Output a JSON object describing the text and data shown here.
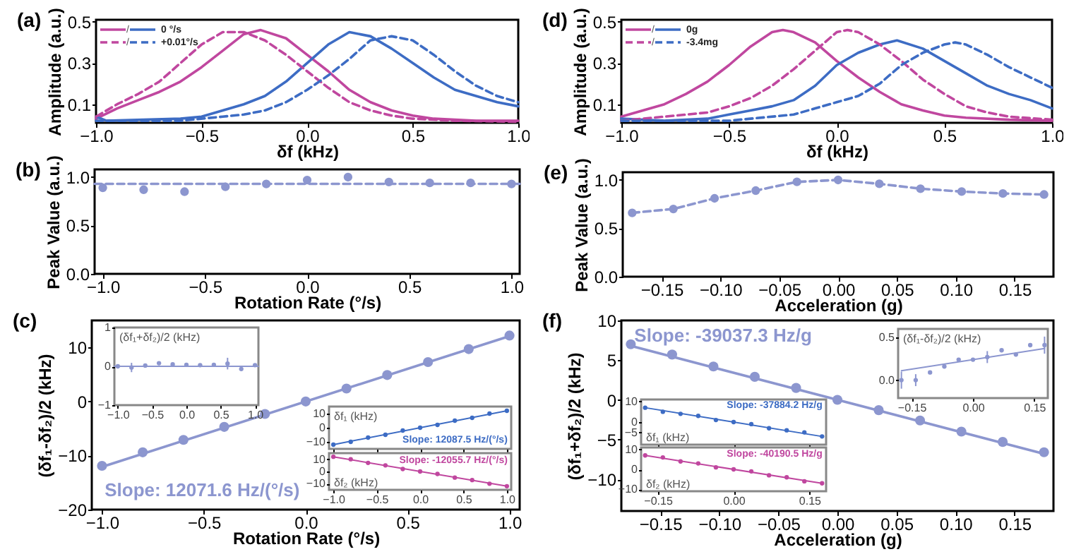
{
  "chart_data": [
    {
      "type": "line",
      "title": "(a)",
      "xlabel": "δf (kHz)",
      "ylabel": "Amplitude (a.u.)",
      "xlim": [
        -1,
        1
      ],
      "ylim": [
        0.01,
        0.51
      ],
      "xticks": [
        {
          "value": -1,
          "label": "−1.0"
        },
        {
          "value": -0.5,
          "label": "−0.5"
        },
        {
          "value": 0,
          "label": "0.0"
        },
        0.5,
        {
          "value": 1,
          "label": "1.0"
        }
      ],
      "yticks": [
        0.1,
        0.3,
        0.5
      ],
      "legend": "top left",
      "annotations": [
        "/",
        "/"
      ],
      "series": [
        {
          "color": "#c0479f",
          "line_style": "solid",
          "x": [
            -1,
            -0.9,
            -0.8,
            -0.7,
            -0.6,
            -0.5,
            -0.4,
            -0.3,
            -0.22,
            -0.1,
            0,
            0.1,
            0.2,
            0.3,
            0.4,
            0.5,
            0.6,
            0.8,
            1
          ],
          "values": [
            0.03,
            0.08,
            0.12,
            0.16,
            0.21,
            0.28,
            0.36,
            0.44,
            0.46,
            0.42,
            0.34,
            0.26,
            0.17,
            0.11,
            0.07,
            0.045,
            0.03,
            0.02,
            0.02
          ]
        },
        {
          "name": "0 °/s",
          "color": "#3d6cc4",
          "line_style": "solid",
          "x": [
            -1,
            -0.95,
            -0.6,
            -0.5,
            -0.4,
            -0.3,
            -0.2,
            -0.1,
            0,
            0.1,
            0.2,
            0.3,
            0.4,
            0.5,
            0.6,
            0.7,
            0.8,
            0.9,
            1
          ],
          "values": [
            0.04,
            0.02,
            0.03,
            0.04,
            0.07,
            0.1,
            0.14,
            0.21,
            0.3,
            0.39,
            0.45,
            0.43,
            0.37,
            0.3,
            0.23,
            0.17,
            0.14,
            0.11,
            0.09
          ]
        },
        {
          "color": "#c0479f",
          "line_style": "dashed",
          "x": [
            -1,
            -0.9,
            -0.8,
            -0.7,
            -0.6,
            -0.5,
            -0.4,
            -0.3,
            -0.2,
            -0.1,
            0,
            0.1,
            0.2,
            0.3,
            0.4,
            0.5,
            0.7,
            1
          ],
          "values": [
            0.04,
            0.1,
            0.15,
            0.21,
            0.3,
            0.39,
            0.45,
            0.45,
            0.41,
            0.34,
            0.26,
            0.18,
            0.11,
            0.07,
            0.045,
            0.03,
            0.02,
            0.015
          ]
        },
        {
          "name": "+0.01°/s",
          "color": "#3d6cc4",
          "line_style": "dashed",
          "x": [
            -1,
            -0.6,
            -0.4,
            -0.3,
            -0.2,
            -0.1,
            0,
            0.1,
            0.2,
            0.3,
            0.4,
            0.5,
            0.6,
            0.7,
            0.8,
            0.9,
            1
          ],
          "values": [
            0.02,
            0.02,
            0.04,
            0.05,
            0.07,
            0.11,
            0.17,
            0.24,
            0.32,
            0.41,
            0.43,
            0.41,
            0.34,
            0.26,
            0.19,
            0.14,
            0.11
          ]
        }
      ]
    },
    {
      "type": "scatter",
      "title": "(b)",
      "xlabel": "Rotation Rate (°/s)",
      "ylabel": "Peak Value (a.u.)",
      "x": [
        -1,
        -0.8,
        -0.6,
        -0.4,
        -0.2,
        0,
        0.2,
        0.4,
        0.6,
        0.8,
        1
      ],
      "xlim": [
        -1.04,
        1.04
      ],
      "ylim": [
        0,
        1.08
      ],
      "xticks": [
        {
          "value": -1,
          "label": "−1.0"
        },
        {
          "value": -0.5,
          "label": "−0.5"
        },
        {
          "value": 0,
          "label": "0.0"
        },
        0.5,
        {
          "value": 1,
          "label": "1.0"
        }
      ],
      "yticks": [
        {
          "value": 0,
          "label": "0.0"
        },
        0.5,
        {
          "value": 1,
          "label": "1.0"
        }
      ],
      "series": [
        {
          "color": "#8c96cf",
          "values": [
            0.89,
            0.87,
            0.85,
            0.9,
            0.93,
            0.97,
            1.0,
            0.95,
            0.94,
            0.94,
            0.93
          ]
        },
        {
          "type": "line",
          "line_style": "dashed",
          "color": "#8c96cf",
          "x": [
            -1.04,
            1.04
          ],
          "values": [
            0.93,
            0.93
          ]
        }
      ]
    },
    {
      "type": "scatter",
      "title": "(c)",
      "xlabel": "Rotation Rate (°/s)",
      "ylabel": "(δf₁-δf₂)/2 (kHz)",
      "x": [
        -1,
        -0.8,
        -0.6,
        -0.4,
        -0.2,
        0,
        0.2,
        0.4,
        0.6,
        0.8,
        1
      ],
      "xlim": [
        -1.05,
        1.05
      ],
      "ylim": [
        -20,
        15
      ],
      "xticks": [
        {
          "value": -1,
          "label": "−1.0"
        },
        {
          "value": -0.5,
          "label": "−0.5"
        },
        {
          "value": 0,
          "label": "0.0"
        },
        0.5,
        {
          "value": 1,
          "label": "1.0"
        }
      ],
      "yticks": [
        {
          "value": -20,
          "label": "−20"
        },
        {
          "value": -10,
          "label": "−10"
        },
        0,
        10
      ],
      "annotations": [
        "Slope: 12071.6 Hz/(°/s)"
      ],
      "series": [
        {
          "color": "#8c96cf",
          "values": [
            -11.9,
            -9.4,
            -7.1,
            -4.7,
            -2.3,
            0,
            2.4,
            4.9,
            7.3,
            9.7,
            12.2
          ]
        },
        {
          "type": "line",
          "color": "#8c96cf",
          "x": [
            -1,
            1
          ],
          "values": [
            -12.1,
            12.1
          ]
        }
      ]
    },
    {
      "type": "scatter",
      "ylabel": "(δf₁+δf₂)/2 (kHz)",
      "x": [
        -1,
        -0.8,
        -0.6,
        -0.4,
        -0.2,
        0,
        0.2,
        0.4,
        0.6,
        0.8,
        1
      ],
      "xlim": [
        -1.05,
        1.05
      ],
      "ylim": [
        -1,
        1
      ],
      "xticks": [
        {
          "value": -1,
          "label": "−1.0"
        },
        {
          "value": -0.5,
          "label": "−0.5"
        },
        {
          "value": 0,
          "label": "0.0"
        },
        0.5,
        {
          "value": 1,
          "label": "1.0"
        }
      ],
      "yticks": [
        {
          "value": -1,
          "label": "−1"
        },
        0,
        1
      ],
      "series": [
        {
          "color": "#8c96cf",
          "values": [
            0,
            -0.03,
            0.02,
            0.08,
            0.05,
            0.04,
            0.03,
            0.04,
            0.07,
            -0.07,
            0.03
          ],
          "errors": [
            null,
            0.12,
            null,
            null,
            null,
            null,
            null,
            null,
            0.15,
            null,
            null
          ]
        },
        {
          "type": "line",
          "color": "#8c96cf",
          "x": [
            -1.05,
            1.05
          ],
          "values": [
            0,
            0
          ]
        }
      ]
    },
    {
      "type": "scatter",
      "ylabel": "δf₁ (kHz)",
      "x": [
        -1,
        -0.8,
        -0.6,
        -0.4,
        -0.2,
        0,
        0.2,
        0.4,
        0.6,
        0.8,
        1
      ],
      "xlim": [
        -1.05,
        1.05
      ],
      "ylim": [
        -15,
        15
      ],
      "tick_labels": "y",
      "xticks": [
        {
          "value": -1,
          "label": null
        },
        {
          "value": -0.5,
          "label": null
        },
        {
          "value": 0,
          "label": null
        },
        {
          "value": 0.5,
          "label": null
        },
        {
          "value": 1,
          "label": null
        }
      ],
      "yticks": [
        {
          "value": -10,
          "label": "−10"
        },
        0,
        10
      ],
      "annotations": [
        "Slope: 12087.5 Hz/(°/s)"
      ],
      "series": [
        {
          "color": "#3d6cc4",
          "values": [
            -12,
            -10,
            -7,
            -5,
            -2,
            0,
            2,
            5,
            7,
            10,
            12
          ]
        },
        {
          "type": "line",
          "color": "#3d6cc4",
          "x": [
            -1,
            1
          ],
          "values": [
            -12,
            12
          ]
        }
      ]
    },
    {
      "type": "scatter",
      "ylabel": "δf₂ (kHz)",
      "x": [
        -1,
        -0.8,
        -0.6,
        -0.4,
        -0.2,
        0,
        0.2,
        0.4,
        0.6,
        0.8,
        1
      ],
      "xlim": [
        -1.05,
        1.05
      ],
      "ylim": [
        -15,
        15
      ],
      "xticks": [
        {
          "value": -1,
          "label": "−1.0"
        },
        {
          "value": -0.5,
          "label": "−0.5"
        },
        {
          "value": 0,
          "label": "0.0"
        },
        0.5,
        {
          "value": 1,
          "label": "1.0"
        }
      ],
      "yticks": [
        {
          "value": -10,
          "label": "−10"
        },
        0,
        10
      ],
      "annotations": [
        "Slope: -12055.7 Hz/(°/s)"
      ],
      "series": [
        {
          "color": "#c0479f",
          "values": [
            12,
            10,
            7,
            5,
            2,
            0,
            -2,
            -5,
            -7,
            -10,
            -12
          ]
        },
        {
          "type": "line",
          "color": "#c0479f",
          "x": [
            -1,
            1
          ],
          "values": [
            12,
            -12
          ]
        }
      ]
    },
    {
      "type": "line",
      "title": "(d)",
      "xlabel": "δf (kHz)",
      "ylabel": "Amplitude (a.u.)",
      "xlim": [
        -1,
        1
      ],
      "ylim": [
        0.01,
        0.51
      ],
      "xticks": [
        {
          "value": -1,
          "label": "−1.0"
        },
        {
          "value": -0.5,
          "label": "−0.5"
        },
        {
          "value": 0,
          "label": "0.0"
        },
        0.5,
        {
          "value": 1,
          "label": "1.0"
        }
      ],
      "yticks": [
        0.1,
        0.3,
        0.5
      ],
      "legend": "top left",
      "annotations": [
        "/",
        "/"
      ],
      "series": [
        {
          "color": "#c0479f",
          "line_style": "solid",
          "x": [
            -1,
            -0.9,
            -0.8,
            -0.7,
            -0.6,
            -0.5,
            -0.4,
            -0.3,
            -0.25,
            -0.2,
            -0.1,
            0,
            0.1,
            0.2,
            0.3,
            0.4,
            0.5,
            0.6,
            0.8,
            1
          ],
          "values": [
            0.04,
            0.07,
            0.1,
            0.15,
            0.21,
            0.29,
            0.38,
            0.45,
            0.46,
            0.45,
            0.4,
            0.31,
            0.23,
            0.16,
            0.1,
            0.07,
            0.045,
            0.035,
            0.025,
            0.02
          ]
        },
        {
          "name": "0g",
          "color": "#3d6cc4",
          "line_style": "solid",
          "x": [
            -1,
            -0.8,
            -0.6,
            -0.5,
            -0.4,
            -0.3,
            -0.2,
            -0.1,
            0,
            0.1,
            0.2,
            0.28,
            0.4,
            0.5,
            0.6,
            0.7,
            0.8,
            0.9,
            1
          ],
          "values": [
            0.03,
            0.02,
            0.03,
            0.05,
            0.07,
            0.09,
            0.12,
            0.19,
            0.29,
            0.35,
            0.39,
            0.41,
            0.37,
            0.31,
            0.25,
            0.19,
            0.15,
            0.12,
            0.08
          ]
        },
        {
          "color": "#c0479f",
          "line_style": "dashed",
          "x": [
            -1,
            -0.8,
            -0.6,
            -0.5,
            -0.4,
            -0.3,
            -0.2,
            -0.1,
            0,
            0.05,
            0.1,
            0.2,
            0.3,
            0.4,
            0.5,
            0.6,
            0.7,
            0.8,
            1
          ],
          "values": [
            0.02,
            0.04,
            0.06,
            0.09,
            0.13,
            0.19,
            0.27,
            0.36,
            0.45,
            0.46,
            0.45,
            0.39,
            0.31,
            0.22,
            0.15,
            0.09,
            0.06,
            0.04,
            0.025
          ]
        },
        {
          "name": "-3.4mg",
          "color": "#3d6cc4",
          "line_style": "dashed",
          "x": [
            -1,
            -0.5,
            -0.4,
            -0.2,
            -0.1,
            0,
            0.1,
            0.2,
            0.3,
            0.4,
            0.5,
            0.55,
            0.6,
            0.7,
            0.8,
            0.9,
            1
          ],
          "values": [
            0.02,
            0.02,
            0.03,
            0.05,
            0.08,
            0.11,
            0.14,
            0.2,
            0.29,
            0.35,
            0.39,
            0.4,
            0.39,
            0.34,
            0.28,
            0.23,
            0.18
          ]
        }
      ]
    },
    {
      "type": "line",
      "title": "(e)",
      "xlabel": "Acceleration (g)",
      "ylabel": "Peak Value (a.u.)",
      "marker": "circle",
      "line_style": "dashed",
      "x": [
        -0.175,
        -0.14,
        -0.105,
        -0.07,
        -0.035,
        0,
        0.035,
        0.07,
        0.105,
        0.14,
        0.175
      ],
      "xlim": [
        -0.183,
        0.183
      ],
      "ylim": [
        0,
        1.08
      ],
      "xticks": [
        {
          "value": -0.15,
          "label": "−0.15"
        },
        {
          "value": -0.1,
          "label": "−0.10"
        },
        {
          "value": -0.05,
          "label": "−0.05"
        },
        {
          "value": 0,
          "label": "0.00"
        },
        0.05,
        {
          "value": 0.1,
          "label": "0.10"
        },
        0.15
      ],
      "yticks": [
        {
          "value": 0,
          "label": "0.0"
        },
        0.5,
        {
          "value": 1,
          "label": "1.0"
        }
      ],
      "series": [
        {
          "color": "#8c96cf",
          "values": [
            0.66,
            0.7,
            0.81,
            0.89,
            0.98,
            1.0,
            0.96,
            0.91,
            0.88,
            0.86,
            0.85
          ]
        }
      ]
    },
    {
      "type": "scatter",
      "title": "(f)",
      "xlabel": "Acceleration (g)",
      "ylabel": "(δf₁+δf₂)/2 (kHz)",
      "x": [
        -0.175,
        -0.14,
        -0.105,
        -0.07,
        -0.035,
        0,
        0.035,
        0.07,
        0.105,
        0.14,
        0.175
      ],
      "xlim": [
        -0.183,
        0.183
      ],
      "ylim": [
        -14,
        10
      ],
      "xticks": [
        {
          "value": -0.15,
          "label": "−0.15"
        },
        {
          "value": -0.1,
          "label": "−0.10"
        },
        {
          "value": -0.05,
          "label": "−0.05"
        },
        {
          "value": 0,
          "label": "0.00"
        },
        0.05,
        {
          "value": 0.1,
          "label": "0.10"
        },
        0.15
      ],
      "yticks": [
        {
          "value": -10,
          "label": "−10"
        },
        {
          "value": -5,
          "label": "−5"
        },
        0,
        5,
        10
      ],
      "annotations": [
        "Slope: -39037.3 Hz/g"
      ],
      "series": [
        {
          "color": "#8c96cf",
          "values": [
            7.0,
            5.7,
            4.2,
            2.9,
            1.5,
            0,
            -1.3,
            -2.6,
            -4.0,
            -5.3,
            -6.6
          ]
        },
        {
          "type": "line",
          "color": "#8c96cf",
          "x": [
            -0.175,
            0.175
          ],
          "values": [
            6.8,
            -6.8
          ]
        }
      ]
    },
    {
      "type": "scatter",
      "ylabel": "(δf₁-δf₂)/2 (kHz)",
      "x": [
        -0.175,
        -0.14,
        -0.105,
        -0.07,
        -0.035,
        0,
        0.035,
        0.07,
        0.105,
        0.14,
        0.175
      ],
      "xlim": [
        -0.183,
        0.183
      ],
      "ylim": [
        -0.21,
        0.6
      ],
      "xticks": [
        {
          "value": -0.15,
          "label": "−0.15"
        },
        {
          "value": 0,
          "label": "0.00"
        },
        0.15
      ],
      "yticks": [
        {
          "value": 0,
          "label": "0.0"
        },
        0.5
      ],
      "series": [
        {
          "color": "#8c96cf",
          "values": [
            0,
            0,
            0.09,
            0.16,
            0.24,
            0.24,
            0.27,
            0.35,
            0.3,
            0.41,
            0.41
          ],
          "errors": [
            0.1,
            0.07,
            null,
            null,
            null,
            null,
            0.07,
            null,
            null,
            null,
            0.1
          ]
        },
        {
          "type": "line",
          "color": "#8c96cf",
          "x": [
            -0.175,
            0.175
          ],
          "values": [
            0.11,
            0.37
          ]
        }
      ]
    },
    {
      "type": "scatter",
      "ylabel": "δf₁ (kHz)",
      "x": [
        -0.175,
        -0.14,
        -0.105,
        -0.07,
        -0.035,
        0,
        0.035,
        0.07,
        0.105,
        0.14,
        0.175
      ],
      "xlim": [
        -0.183,
        0.183
      ],
      "ylim": [
        -11,
        11
      ],
      "tick_labels": "y",
      "xticks": [
        {
          "value": -0.15,
          "label": null
        },
        {
          "value": 0,
          "label": null
        },
        {
          "value": 0.15,
          "label": null
        }
      ],
      "yticks": [
        {
          "value": -5,
          "label": "−5"
        },
        0,
        10
      ],
      "annotations": [
        "Slope: -37884.2 Hz/g"
      ],
      "series": [
        {
          "color": "#3d6cc4",
          "values": [
            7,
            5,
            4,
            3,
            1,
            0,
            -1,
            -3,
            -4,
            -5,
            -7
          ]
        },
        {
          "type": "line",
          "color": "#3d6cc4",
          "x": [
            -0.175,
            0.175
          ],
          "values": [
            7,
            -7
          ]
        }
      ]
    },
    {
      "type": "scatter",
      "ylabel": "δf₂ (kHz)",
      "x": [
        -0.175,
        -0.14,
        -0.105,
        -0.07,
        -0.035,
        0,
        0.035,
        0.07,
        0.105,
        0.14,
        0.175
      ],
      "xlim": [
        -0.183,
        0.183
      ],
      "ylim": [
        -11,
        11
      ],
      "xticks": [
        {
          "value": -0.15,
          "label": "−0.15"
        },
        {
          "value": 0,
          "label": "0.00"
        },
        0.15
      ],
      "yticks": [
        {
          "value": -10,
          "label": "−10"
        },
        0,
        10
      ],
      "annotations": [
        "Slope: -40190.5 Hz/g"
      ],
      "series": [
        {
          "color": "#c0479f",
          "values": [
            7,
            6,
            4,
            3,
            1,
            0,
            -1,
            -3,
            -4,
            -6,
            -7
          ]
        },
        {
          "type": "line",
          "color": "#c0479f",
          "x": [
            -0.175,
            0.175
          ],
          "values": [
            7,
            -7
          ]
        }
      ]
    }
  ]
}
